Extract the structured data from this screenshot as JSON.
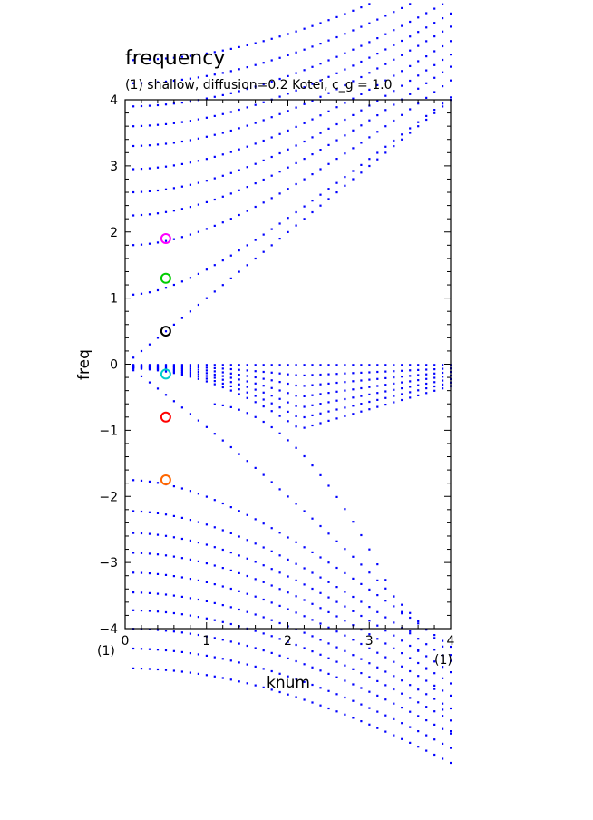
{
  "colors": {
    "points": "#0000ff",
    "axis": "#000000"
  },
  "chart_data": {
    "type": "scatter",
    "title": "frequency",
    "subtitle": "(1) shallow, diffusion=0.2 Kotei, c_g = 1.0",
    "xlabel": "knum",
    "ylabel": "freq",
    "xlim": [
      0,
      4
    ],
    "ylim": [
      -4,
      4
    ],
    "x_ticks": [
      "0",
      "1",
      "2",
      "3",
      "4"
    ],
    "y_ticks": [
      "−4",
      "−3",
      "−2",
      "−1",
      "0",
      "1",
      "2",
      "3",
      "4"
    ],
    "x_unit_left": "(1)",
    "x_unit_right": "(1)",
    "grid": false,
    "series": [
      {
        "color": "#0000ff",
        "description": "Upper acoustic-like branches: hyperbolic families freq = sqrt(f0^2 + k^2)",
        "upper_branch_intercepts": [
          1.05,
          1.8,
          2.25,
          2.6,
          2.95,
          3.3,
          3.6,
          3.9,
          4.25,
          4.6
        ],
        "lower_branch_intercepts": [
          -1.75,
          -2.22,
          -2.55,
          -2.85,
          -3.15,
          -3.45,
          -3.72,
          -4.0,
          -4.3,
          -4.6
        ]
      },
      {
        "color": "#0000ff",
        "description": "Main acoustic branch through origin: freq = k and freq = -k"
      },
      {
        "color": "#0000ff",
        "description": "Diffusive damped modes: dense cluster just below zero, freq ≈ -0.2*k^2"
      }
    ],
    "markers": [
      {
        "x": 0.5,
        "y": 1.9,
        "color": "#ff00ff"
      },
      {
        "x": 0.5,
        "y": 1.3,
        "color": "#00cc00"
      },
      {
        "x": 0.5,
        "y": 0.5,
        "color": "#000000"
      },
      {
        "x": 0.5,
        "y": -0.15,
        "color": "#00cccc"
      },
      {
        "x": 0.5,
        "y": -0.8,
        "color": "#ff0000"
      },
      {
        "x": 0.5,
        "y": -1.75,
        "color": "#ff6600"
      }
    ]
  }
}
